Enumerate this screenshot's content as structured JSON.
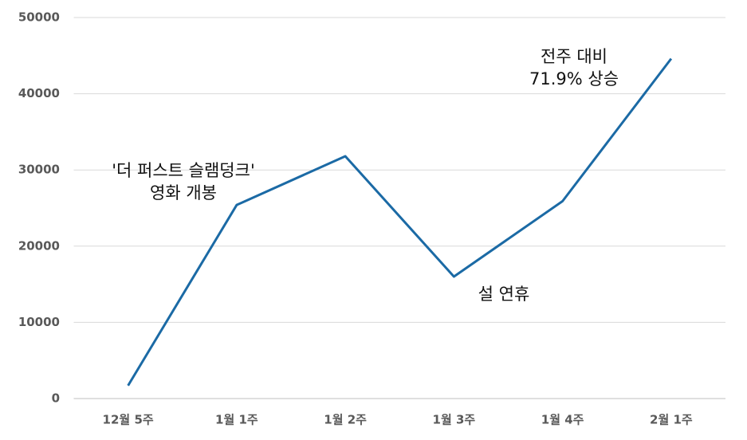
{
  "chart_data": {
    "type": "line",
    "categories": [
      "12월 5주",
      "1월 1주",
      "1월 2주",
      "1월 3주",
      "1월 4주",
      "2월 1주"
    ],
    "values": [
      1700,
      25400,
      31800,
      16000,
      25900,
      44600
    ],
    "color": "#1b6aa5",
    "ylim": [
      0,
      50000
    ],
    "yticks": [
      0,
      10000,
      20000,
      30000,
      40000,
      50000
    ],
    "grid": true,
    "annotations": [
      [
        "'더 퍼스트 슬램덩크'",
        "영화 개봉"
      ],
      [
        "설 연휴"
      ],
      [
        "전주 대비",
        "71.9% 상승"
      ]
    ]
  }
}
